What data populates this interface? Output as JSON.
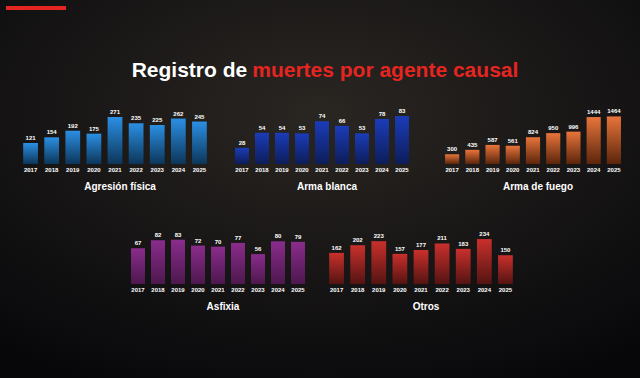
{
  "header": {
    "title": [
      "Registro de",
      "muertes por agente causal"
    ]
  },
  "chart_data": [
    {
      "type": "bar",
      "title": "Agresión física",
      "categories": [
        "2017",
        "2018",
        "2019",
        "2020",
        "2021",
        "2022",
        "2023",
        "2024",
        "2025"
      ],
      "values": [
        121,
        154,
        192,
        175,
        271,
        235,
        225,
        262,
        245
      ],
      "color": "#2b8fe3",
      "ylim": [
        0,
        300
      ],
      "data_labels": true,
      "tick_labels": "x"
    },
    {
      "type": "bar",
      "title": "Arma blanca",
      "categories": [
        "2017",
        "2018",
        "2019",
        "2020",
        "2021",
        "2022",
        "2023",
        "2024",
        "2025"
      ],
      "values": [
        28,
        54,
        54,
        53,
        74,
        66,
        53,
        78,
        83
      ],
      "color": "#1b3cb8",
      "ylim": [
        0,
        90
      ],
      "data_labels": true,
      "tick_labels": "x"
    },
    {
      "type": "bar",
      "title": "Arma de fuego",
      "categories": [
        "2017",
        "2018",
        "2019",
        "2020",
        "2021",
        "2022",
        "2023",
        "2024",
        "2025"
      ],
      "values": [
        300,
        435,
        587,
        561,
        824,
        950,
        996,
        1444,
        1464
      ],
      "color": "#e8743b",
      "ylim": [
        0,
        1600
      ],
      "data_labels": true,
      "tick_labels": "x"
    },
    {
      "type": "bar",
      "title": "Asfixia",
      "categories": [
        "2017",
        "2018",
        "2019",
        "2020",
        "2021",
        "2022",
        "2023",
        "2024",
        "2025"
      ],
      "values": [
        67,
        82,
        83,
        72,
        70,
        77,
        56,
        80,
        79
      ],
      "color": "#8a2c8c",
      "ylim": [
        0,
        90
      ],
      "data_labels": true,
      "tick_labels": "x"
    },
    {
      "type": "bar",
      "title": "Otros",
      "categories": [
        "2017",
        "2018",
        "2019",
        "2020",
        "2021",
        "2022",
        "2023",
        "2024",
        "2025"
      ],
      "values": [
        162,
        202,
        223,
        157,
        177,
        211,
        183,
        234,
        150
      ],
      "color": "#c9302c",
      "ylim": [
        0,
        250
      ],
      "data_labels": true,
      "tick_labels": "x"
    }
  ]
}
